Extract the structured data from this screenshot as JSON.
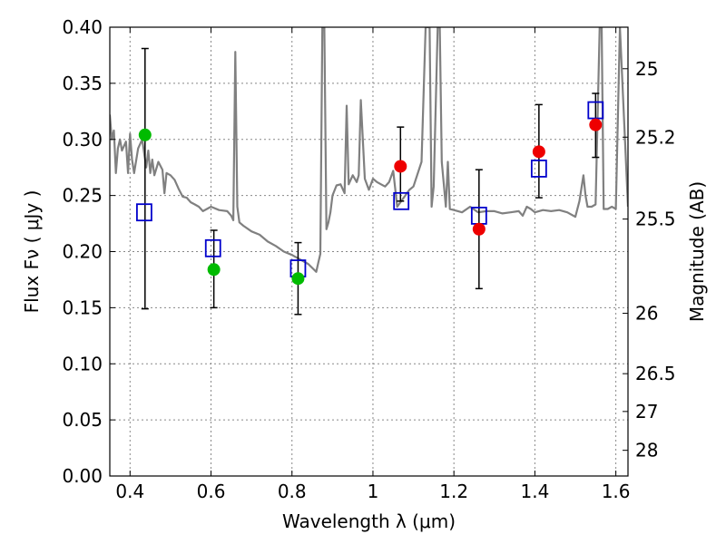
{
  "chart_data": {
    "type": "scatter",
    "xlabel": "Wavelength  λ (μm)",
    "ylabel": "Flux  Fν  ( μJy )",
    "y2label": "Magnitude (AB)",
    "xlim": [
      0.35,
      1.63
    ],
    "ylim": [
      0.0,
      0.4
    ],
    "grid": true,
    "x_ticks": [
      {
        "v": 0.4,
        "label": "0.4"
      },
      {
        "v": 0.6,
        "label": "0.6"
      },
      {
        "v": 0.8,
        "label": "0.8"
      },
      {
        "v": 1.0,
        "label": "1"
      },
      {
        "v": 1.2,
        "label": "1.2"
      },
      {
        "v": 1.4,
        "label": "1.4"
      },
      {
        "v": 1.6,
        "label": "1.6"
      }
    ],
    "y_ticks": [
      {
        "v": 0.0,
        "label": "0.00"
      },
      {
        "v": 0.05,
        "label": "0.05"
      },
      {
        "v": 0.1,
        "label": "0.10"
      },
      {
        "v": 0.15,
        "label": "0.15"
      },
      {
        "v": 0.2,
        "label": "0.20"
      },
      {
        "v": 0.25,
        "label": "0.25"
      },
      {
        "v": 0.3,
        "label": "0.30"
      },
      {
        "v": 0.35,
        "label": "0.35"
      },
      {
        "v": 0.4,
        "label": "0.40"
      }
    ],
    "mag_ticks": [
      {
        "v": 0.363,
        "label": "25"
      },
      {
        "v": 0.302,
        "label": "25.2"
      },
      {
        "v": 0.229,
        "label": "25.5"
      },
      {
        "v": 0.145,
        "label": "26"
      },
      {
        "v": 0.0912,
        "label": "26.5"
      },
      {
        "v": 0.0575,
        "label": "27"
      },
      {
        "v": 0.0229,
        "label": "28"
      }
    ],
    "series": [
      {
        "style": "line",
        "color": "#808080",
        "x": [
          0.35,
          0.355,
          0.36,
          0.365,
          0.37,
          0.375,
          0.38,
          0.39,
          0.395,
          0.4,
          0.405,
          0.41,
          0.42,
          0.43,
          0.44,
          0.445,
          0.45,
          0.455,
          0.46,
          0.47,
          0.48,
          0.485,
          0.49,
          0.5,
          0.51,
          0.52,
          0.53,
          0.54,
          0.55,
          0.56,
          0.57,
          0.58,
          0.6,
          0.62,
          0.64,
          0.65,
          0.655,
          0.66,
          0.665,
          0.67,
          0.68,
          0.7,
          0.72,
          0.74,
          0.76,
          0.78,
          0.8,
          0.82,
          0.84,
          0.86,
          0.865,
          0.87,
          0.875,
          0.88,
          0.885,
          0.89,
          0.895,
          0.9,
          0.91,
          0.92,
          0.93,
          0.935,
          0.94,
          0.95,
          0.96,
          0.965,
          0.97,
          0.98,
          0.99,
          1.0,
          1.01,
          1.02,
          1.03,
          1.04,
          1.05,
          1.06,
          1.08,
          1.09,
          1.1,
          1.12,
          1.13,
          1.135,
          1.14,
          1.145,
          1.15,
          1.16,
          1.165,
          1.17,
          1.18,
          1.185,
          1.19,
          1.2,
          1.22,
          1.24,
          1.26,
          1.28,
          1.3,
          1.32,
          1.34,
          1.36,
          1.37,
          1.38,
          1.39,
          1.4,
          1.42,
          1.44,
          1.46,
          1.48,
          1.5,
          1.51,
          1.52,
          1.525,
          1.53,
          1.54,
          1.55,
          1.56,
          1.565,
          1.57,
          1.58,
          1.59,
          1.6,
          1.61,
          1.63
        ],
        "y": [
          0.322,
          0.3,
          0.308,
          0.27,
          0.292,
          0.3,
          0.29,
          0.298,
          0.27,
          0.305,
          0.282,
          0.27,
          0.292,
          0.3,
          0.275,
          0.29,
          0.27,
          0.282,
          0.268,
          0.28,
          0.273,
          0.252,
          0.27,
          0.268,
          0.264,
          0.256,
          0.249,
          0.248,
          0.244,
          0.242,
          0.24,
          0.236,
          0.24,
          0.237,
          0.236,
          0.232,
          0.228,
          0.378,
          0.24,
          0.226,
          0.223,
          0.218,
          0.215,
          0.209,
          0.205,
          0.2,
          0.197,
          0.193,
          0.189,
          0.182,
          0.19,
          0.198,
          0.4,
          0.4,
          0.22,
          0.226,
          0.235,
          0.25,
          0.259,
          0.26,
          0.252,
          0.33,
          0.26,
          0.268,
          0.262,
          0.268,
          0.335,
          0.265,
          0.255,
          0.265,
          0.262,
          0.26,
          0.258,
          0.262,
          0.272,
          0.24,
          0.25,
          0.255,
          0.258,
          0.28,
          0.4,
          0.4,
          0.4,
          0.24,
          0.258,
          0.4,
          0.4,
          0.28,
          0.24,
          0.28,
          0.238,
          0.237,
          0.235,
          0.24,
          0.235,
          0.236,
          0.236,
          0.234,
          0.235,
          0.236,
          0.232,
          0.24,
          0.238,
          0.235,
          0.237,
          0.236,
          0.237,
          0.235,
          0.231,
          0.245,
          0.268,
          0.25,
          0.24,
          0.24,
          0.242,
          0.4,
          0.4,
          0.238,
          0.238,
          0.24,
          0.238,
          0.4,
          0.24
        ]
      },
      {
        "style": "open-square",
        "color": "#0000cc",
        "x": [
          0.435,
          0.605,
          0.815,
          1.07,
          1.262,
          1.41,
          1.55
        ],
        "y": [
          0.235,
          0.203,
          0.185,
          0.245,
          0.232,
          0.274,
          0.326
        ]
      },
      {
        "style": "filled-circle",
        "color": "#00bb00",
        "x": [
          0.437,
          0.607,
          0.815
        ],
        "y": [
          0.304,
          0.184,
          0.176
        ],
        "yerr_low": [
          0.149,
          0.15,
          0.144
        ],
        "yerr_high": [
          0.381,
          0.219,
          0.208
        ]
      },
      {
        "style": "filled-circle",
        "color": "#ee0000",
        "x": [
          1.068,
          1.262,
          1.41,
          1.55
        ],
        "y": [
          0.276,
          0.22,
          0.289,
          0.313
        ],
        "yerr_low": [
          0.245,
          0.167,
          0.248,
          0.284
        ],
        "yerr_high": [
          0.311,
          0.273,
          0.331,
          0.341
        ]
      }
    ]
  }
}
